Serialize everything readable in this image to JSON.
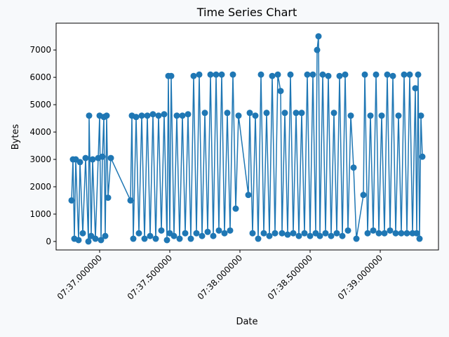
{
  "chart_data": {
    "type": "line",
    "title": "Time Series Chart",
    "x_label": "Date",
    "y_label": "Bytes",
    "color": "#1f77b4",
    "markers": true,
    "xlim": [
      "07:36.690000",
      "07:39.415000"
    ],
    "xticks": [
      "07:37.000000",
      "07:37.500000",
      "07:38.000000",
      "07:38.500000",
      "07:39.000000"
    ],
    "ylim": [
      -310,
      7980
    ],
    "yticks": [
      0,
      1000,
      2000,
      3000,
      4000,
      5000,
      6000,
      7000
    ],
    "x": [
      "07:36.800000",
      "07:36.810000",
      "07:36.820000",
      "07:36.830000",
      "07:36.850000",
      "07:36.860000",
      "07:36.880000",
      "07:36.900000",
      "07:36.920000",
      "07:36.925000",
      "07:36.940000",
      "07:36.950000",
      "07:36.970000",
      "07:36.990000",
      "07:37.000000",
      "07:37.010000",
      "07:37.020000",
      "07:37.030000",
      "07:37.040000",
      "07:37.050000",
      "07:37.060000",
      "07:37.080000",
      "07:37.220000",
      "07:37.230000",
      "07:37.240000",
      "07:37.260000",
      "07:37.280000",
      "07:37.300000",
      "07:37.320000",
      "07:37.340000",
      "07:37.360000",
      "07:37.380000",
      "07:37.400000",
      "07:37.420000",
      "07:37.440000",
      "07:37.460000",
      "07:37.480000",
      "07:37.490000",
      "07:37.500000",
      "07:37.510000",
      "07:37.530000",
      "07:37.550000",
      "07:37.570000",
      "07:37.590000",
      "07:37.610000",
      "07:37.630000",
      "07:37.650000",
      "07:37.670000",
      "07:37.690000",
      "07:37.710000",
      "07:37.730000",
      "07:37.750000",
      "07:37.770000",
      "07:37.790000",
      "07:37.810000",
      "07:37.830000",
      "07:37.850000",
      "07:37.870000",
      "07:37.890000",
      "07:37.910000",
      "07:37.930000",
      "07:37.950000",
      "07:37.970000",
      "07:37.990000",
      "07:38.060000",
      "07:38.070000",
      "07:38.090000",
      "07:38.110000",
      "07:38.130000",
      "07:38.150000",
      "07:38.170000",
      "07:38.190000",
      "07:38.210000",
      "07:38.230000",
      "07:38.250000",
      "07:38.270000",
      "07:38.290000",
      "07:38.300000",
      "07:38.320000",
      "07:38.340000",
      "07:38.360000",
      "07:38.380000",
      "07:38.400000",
      "07:38.420000",
      "07:38.440000",
      "07:38.460000",
      "07:38.480000",
      "07:38.500000",
      "07:38.520000",
      "07:38.540000",
      "07:38.550000",
      "07:38.560000",
      "07:38.570000",
      "07:38.590000",
      "07:38.610000",
      "07:38.630000",
      "07:38.650000",
      "07:38.670000",
      "07:38.690000",
      "07:38.710000",
      "07:38.730000",
      "07:38.750000",
      "07:38.770000",
      "07:38.790000",
      "07:38.810000",
      "07:38.830000",
      "07:38.880000",
      "07:38.890000",
      "07:38.910000",
      "07:38.930000",
      "07:38.950000",
      "07:38.970000",
      "07:38.990000",
      "07:39.010000",
      "07:39.030000",
      "07:39.050000",
      "07:39.070000",
      "07:39.090000",
      "07:39.110000",
      "07:39.130000",
      "07:39.150000",
      "07:39.170000",
      "07:39.190000",
      "07:39.210000",
      "07:39.230000",
      "07:39.250000",
      "07:39.260000",
      "07:39.270000",
      "07:39.280000",
      "07:39.290000",
      "07:39.300000"
    ],
    "values": [
      1500,
      3000,
      100,
      3000,
      50,
      2900,
      300,
      3050,
      0,
      4600,
      200,
      3000,
      100,
      3050,
      4600,
      50,
      3100,
      4550,
      200,
      4600,
      1600,
      3050,
      1500,
      4600,
      100,
      4550,
      300,
      4600,
      100,
      4600,
      200,
      4650,
      100,
      4600,
      400,
      4650,
      50,
      6050,
      300,
      6050,
      200,
      4600,
      100,
      4600,
      300,
      4650,
      100,
      6050,
      300,
      6100,
      200,
      4700,
      350,
      6100,
      200,
      6100,
      400,
      6100,
      300,
      4700,
      400,
      6100,
      1200,
      4600,
      1700,
      4700,
      300,
      4600,
      100,
      6100,
      300,
      4700,
      200,
      6050,
      300,
      6100,
      5500,
      300,
      4700,
      250,
      6100,
      300,
      4700,
      200,
      4700,
      300,
      6100,
      200,
      6100,
      300,
      7000,
      7500,
      200,
      6100,
      300,
      6050,
      200,
      4700,
      300,
      6050,
      200,
      6100,
      400,
      4600,
      2700,
      100,
      1700,
      6100,
      300,
      4600,
      400,
      6100,
      300,
      4600,
      300,
      6100,
      400,
      6050,
      300,
      4600,
      300,
      6100,
      300,
      6100,
      300,
      5600,
      300,
      6100,
      100,
      4600,
      3100
    ]
  }
}
